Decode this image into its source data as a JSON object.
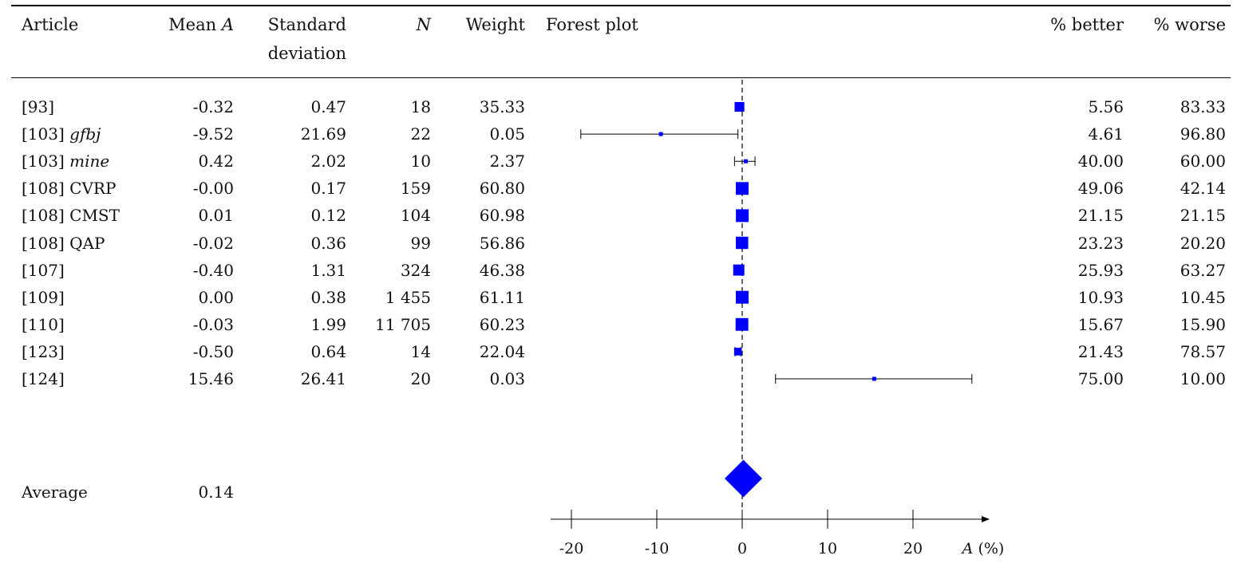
{
  "table": {
    "headers": {
      "article": "Article",
      "mean_prefix": "Mean ",
      "mean_var": "A",
      "sd_line1": "Standard",
      "sd_line2": "deviation",
      "n": "N",
      "weight": "Weight",
      "forest": "Forest plot",
      "better": "% better",
      "worse": "% worse"
    },
    "rows": [
      {
        "ref": "[93]",
        "tag": "",
        "tag_italic": false,
        "mean": "-0.32",
        "sd": "0.47",
        "n": "18",
        "weight": "35.33",
        "better": "5.56",
        "worse": "83.33"
      },
      {
        "ref": "[103]",
        "tag": "gfbj",
        "tag_italic": true,
        "mean": "-9.52",
        "sd": "21.69",
        "n": "22",
        "weight": "0.05",
        "better": "4.61",
        "worse": "96.80"
      },
      {
        "ref": "[103]",
        "tag": "mine",
        "tag_italic": true,
        "mean": "0.42",
        "sd": "2.02",
        "n": "10",
        "weight": "2.37",
        "better": "40.00",
        "worse": "60.00"
      },
      {
        "ref": "[108]",
        "tag": "CVRP",
        "tag_italic": false,
        "mean": "-0.00",
        "sd": "0.17",
        "n": "159",
        "weight": "60.80",
        "better": "49.06",
        "worse": "42.14"
      },
      {
        "ref": "[108]",
        "tag": "CMST",
        "tag_italic": false,
        "mean": "0.01",
        "sd": "0.12",
        "n": "104",
        "weight": "60.98",
        "better": "21.15",
        "worse": "21.15"
      },
      {
        "ref": "[108]",
        "tag": "QAP",
        "tag_italic": false,
        "mean": "-0.02",
        "sd": "0.36",
        "n": "99",
        "weight": "56.86",
        "better": "23.23",
        "worse": "20.20"
      },
      {
        "ref": "[107]",
        "tag": "",
        "tag_italic": false,
        "mean": "-0.40",
        "sd": "1.31",
        "n": "324",
        "weight": "46.38",
        "better": "25.93",
        "worse": "63.27"
      },
      {
        "ref": "[109]",
        "tag": "",
        "tag_italic": false,
        "mean": "0.00",
        "sd": "0.38",
        "n": "1 455",
        "weight": "61.11",
        "better": "10.93",
        "worse": "10.45"
      },
      {
        "ref": "[110]",
        "tag": "",
        "tag_italic": false,
        "mean": "-0.03",
        "sd": "1.99",
        "n": "11 705",
        "weight": "60.23",
        "better": "15.67",
        "worse": "15.90"
      },
      {
        "ref": "[123]",
        "tag": "",
        "tag_italic": false,
        "mean": "-0.50",
        "sd": "0.64",
        "n": "14",
        "weight": "22.04",
        "better": "21.43",
        "worse": "78.57"
      },
      {
        "ref": "[124]",
        "tag": "",
        "tag_italic": false,
        "mean": "15.46",
        "sd": "26.41",
        "n": "20",
        "weight": "0.03",
        "better": "75.00",
        "worse": "10.00"
      }
    ],
    "average": {
      "label": "Average",
      "mean": "0.14"
    }
  },
  "chart_data": {
    "type": "scatter",
    "subtype": "forest",
    "title": "Forest plot",
    "xlabel_var": "A",
    "xlabel_unit": " (%)",
    "xlim": [
      -20,
      28
    ],
    "xticks": [
      -20,
      -10,
      0,
      10,
      20
    ],
    "tick_labels": [
      "-20",
      "-10",
      "0",
      "10",
      "20"
    ],
    "reference_line": 0,
    "marker_color": "#0000ff",
    "series": [
      {
        "mean": -0.32,
        "ci": [
          -0.55,
          -0.09
        ],
        "weight": 35.33
      },
      {
        "mean": -9.52,
        "ci": [
          -18.9,
          -0.5
        ],
        "weight": 0.05
      },
      {
        "mean": 0.42,
        "ci": [
          -0.9,
          1.5
        ],
        "weight": 2.37
      },
      {
        "mean": -0.0,
        "ci": [
          -0.03,
          0.03
        ],
        "weight": 60.8
      },
      {
        "mean": 0.01,
        "ci": [
          -0.01,
          0.03
        ],
        "weight": 60.98
      },
      {
        "mean": -0.02,
        "ci": [
          -0.09,
          0.05
        ],
        "weight": 56.86
      },
      {
        "mean": -0.4,
        "ci": [
          -0.54,
          -0.26
        ],
        "weight": 46.38
      },
      {
        "mean": 0.0,
        "ci": [
          -0.02,
          0.02
        ],
        "weight": 61.11
      },
      {
        "mean": -0.03,
        "ci": [
          -0.07,
          0.01
        ],
        "weight": 60.23
      },
      {
        "mean": -0.5,
        "ci": [
          -0.84,
          -0.16
        ],
        "weight": 22.04
      },
      {
        "mean": 15.46,
        "ci": [
          3.9,
          26.9
        ],
        "weight": 0.03
      }
    ],
    "pooled": {
      "mean": 0.14,
      "half_width": 2.2
    }
  }
}
